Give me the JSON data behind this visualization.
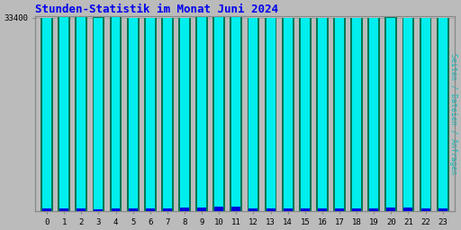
{
  "title": "Stunden-Statistik im Monat Juni 2024",
  "title_color": "#0000ee",
  "title_fontsize": 9,
  "xlabel_values": [
    0,
    1,
    2,
    3,
    4,
    5,
    6,
    7,
    8,
    9,
    10,
    11,
    12,
    13,
    14,
    15,
    16,
    17,
    18,
    19,
    20,
    21,
    22,
    23
  ],
  "ylabel_right": "Seiten / Dateien / Anfragen",
  "ylabel_right_color": "#00bbbb",
  "ytick_label": "33400",
  "ytick_value": 33400,
  "background_color": "#bbbbbb",
  "plot_bg_color": "#bbbbbb",
  "green_heights": [
    33400,
    33440,
    33460,
    33440,
    33450,
    33395,
    33405,
    33375,
    33415,
    33445,
    33465,
    33465,
    33385,
    33375,
    33375,
    33365,
    33355,
    33385,
    33395,
    33395,
    33425,
    33415,
    33385,
    33385
  ],
  "cyan_heights": [
    33370,
    33425,
    33440,
    33415,
    33425,
    33382,
    33392,
    33362,
    33385,
    33435,
    33455,
    33445,
    33362,
    33362,
    33362,
    33352,
    33342,
    33372,
    33372,
    33372,
    33402,
    33382,
    33362,
    33362
  ],
  "blue_heights": [
    500,
    500,
    500,
    400,
    450,
    450,
    430,
    420,
    700,
    680,
    780,
    790,
    500,
    460,
    420,
    420,
    560,
    500,
    470,
    460,
    620,
    650,
    420,
    470
  ],
  "green_color": "#007755",
  "cyan_color": "#00eeee",
  "blue_color": "#0000dd",
  "ylim_min": 0,
  "ylim_max": 33600,
  "ytick_pos": 33400
}
